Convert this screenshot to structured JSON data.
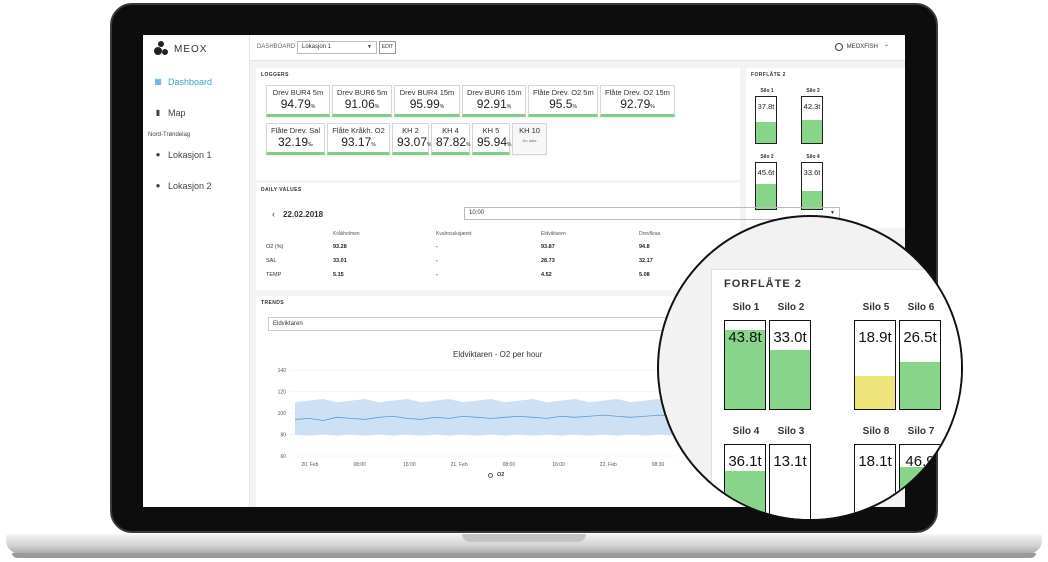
{
  "brand": {
    "name": "MEOX"
  },
  "sidebar": {
    "items": [
      {
        "label": "Dashboard",
        "icon": "dashboard-icon"
      },
      {
        "label": "Map",
        "icon": "map-icon"
      }
    ],
    "region": "Nord-Trøndelag",
    "locations": [
      {
        "label": "Lokasjon 1",
        "icon": "location-pin-icon"
      },
      {
        "label": "Lokasjon 2",
        "icon": "location-pin-icon"
      }
    ]
  },
  "header": {
    "dashboard_label": "DASHBOARD",
    "location_value": "Lokasjon 1",
    "edit_label": "EDIT",
    "user": "MEOXFISH"
  },
  "loggers": {
    "title": "LOGGERS",
    "items": [
      {
        "name": "Drev BUR4 5m",
        "value": "94.79",
        "unit": "%"
      },
      {
        "name": "Drev BUR6 5m",
        "value": "91.06",
        "unit": "%"
      },
      {
        "name": "Drev BUR4 15m",
        "value": "95.99",
        "unit": "%"
      },
      {
        "name": "Drev BUR6 15m",
        "value": "92.91",
        "unit": "%"
      },
      {
        "name": "Flåte Drev. O2 5m",
        "value": "95.5",
        "unit": "%"
      },
      {
        "name": "Flåte Drev. O2 15m",
        "value": "92.79",
        "unit": "%"
      },
      {
        "name": "Flåte Drev. Sal",
        "value": "32.19",
        "unit": "‰"
      },
      {
        "name": "Flåte Kråkh. O2",
        "value": "93.17",
        "unit": "%"
      },
      {
        "name": "KH 2",
        "value": "93.07",
        "unit": "%"
      },
      {
        "name": "KH 4",
        "value": "87.82",
        "unit": "%"
      },
      {
        "name": "KH 5",
        "value": "95.94",
        "unit": "%"
      },
      {
        "name": "KH 10",
        "value": "",
        "unit": "",
        "note": "No data"
      }
    ]
  },
  "silos_small": {
    "title": "FORFLÅTE 2",
    "items": [
      {
        "name": "Silo 1",
        "value": "37.8t",
        "fill": 0.45
      },
      {
        "name": "Silo 3",
        "value": "42.3t",
        "fill": 0.5
      },
      {
        "name": "Silo 2",
        "value": "45.6t",
        "fill": 0.55
      },
      {
        "name": "Silo 4",
        "value": "33.6t",
        "fill": 0.4
      }
    ]
  },
  "daily_values": {
    "title": "DAILY VALUES",
    "date": "22.02.2018",
    "time": "10:00",
    "columns": [
      "Kråkholmen",
      "Kvalrossksjæret",
      "Eldviktaren",
      "Drevflesa"
    ],
    "rows": [
      {
        "label": "O2 (%)",
        "values": [
          "93.28",
          "-",
          "93.87",
          "94.8"
        ]
      },
      {
        "label": "SAL",
        "values": [
          "33.01",
          "-",
          "28.73",
          "32.17"
        ]
      },
      {
        "label": "TEMP",
        "values": [
          "5.15",
          "-",
          "4.52",
          "5.08"
        ]
      }
    ]
  },
  "trends": {
    "title": "TRENDS",
    "location": "Eldviktaren"
  },
  "chart_data": {
    "type": "area",
    "title": "Eldviktaren - O2 per hour",
    "x_ticks": [
      "20. Feb",
      "08:00",
      "16:00",
      "21. Feb",
      "08:00",
      "16:00",
      "22. Feb",
      "08:30"
    ],
    "y_ticks": [
      "140",
      "120",
      "100",
      "80",
      "60"
    ],
    "ylim": [
      60,
      140
    ],
    "series": [
      {
        "name": "O2",
        "values": [
          94,
          95,
          93,
          96,
          95,
          94,
          96,
          97,
          95,
          94,
          96,
          95,
          97,
          96,
          95,
          96,
          97,
          96,
          95,
          97,
          96,
          97,
          98,
          97,
          96,
          97,
          98,
          97
        ]
      }
    ],
    "band": {
      "low": 80,
      "high": 110
    },
    "legend": "bottom"
  },
  "lens": {
    "title": "FORFLÅTE 2",
    "silos": [
      {
        "name": "Silo 1",
        "value": "43.8t",
        "fill": 0.9,
        "level": "ok"
      },
      {
        "name": "Silo 2",
        "value": "33.0t",
        "fill": 0.67,
        "level": "ok"
      },
      {
        "name": "Silo 5",
        "value": "18.9t",
        "fill": 0.38,
        "level": "low"
      },
      {
        "name": "Silo 6",
        "value": "26.5t",
        "fill": 0.53,
        "level": "ok"
      },
      {
        "name": "Silo 4",
        "value": "36.1t",
        "fill": 0.7,
        "level": "ok"
      },
      {
        "name": "Silo 3",
        "value": "13.1t",
        "fill": 0.08,
        "level": "low"
      },
      {
        "name": "Silo 8",
        "value": "18.1t",
        "fill": 0.1,
        "level": "low"
      },
      {
        "name": "Silo 7",
        "value": "46.9",
        "fill": 0.75,
        "level": "ok"
      }
    ]
  },
  "colors": {
    "accent": "#3aa3c7",
    "ok": "#88d48b",
    "low": "#ede47a",
    "band": "#c8ddf3",
    "line": "#5b9bd5"
  }
}
